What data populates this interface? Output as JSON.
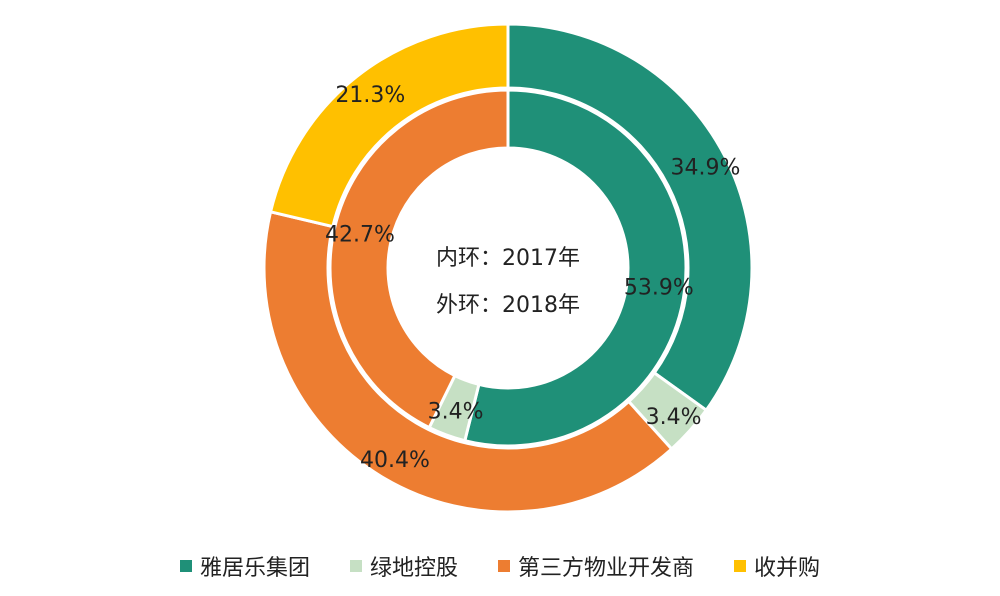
{
  "chart_data": {
    "type": "pie",
    "center_text": [
      "内环：2017年",
      "外环：2018年"
    ],
    "legend_position": "bottom",
    "categories": [
      "雅居乐集团",
      "绿地控股",
      "第三方物业开发商",
      "收并购"
    ],
    "colors": [
      "#1F9078",
      "#C6E0C4",
      "#ED7D31",
      "#FFC000"
    ],
    "series": [
      {
        "ring": "inner",
        "year": "2017",
        "values": [
          53.9,
          3.4,
          42.7,
          0
        ],
        "labels": [
          "53.9%",
          "3.4%",
          "42.7%",
          ""
        ]
      },
      {
        "ring": "outer",
        "year": "2018",
        "values": [
          34.9,
          3.4,
          40.4,
          21.3
        ],
        "labels": [
          "34.9%",
          "3.4%",
          "40.4%",
          "21.3%"
        ]
      }
    ]
  }
}
